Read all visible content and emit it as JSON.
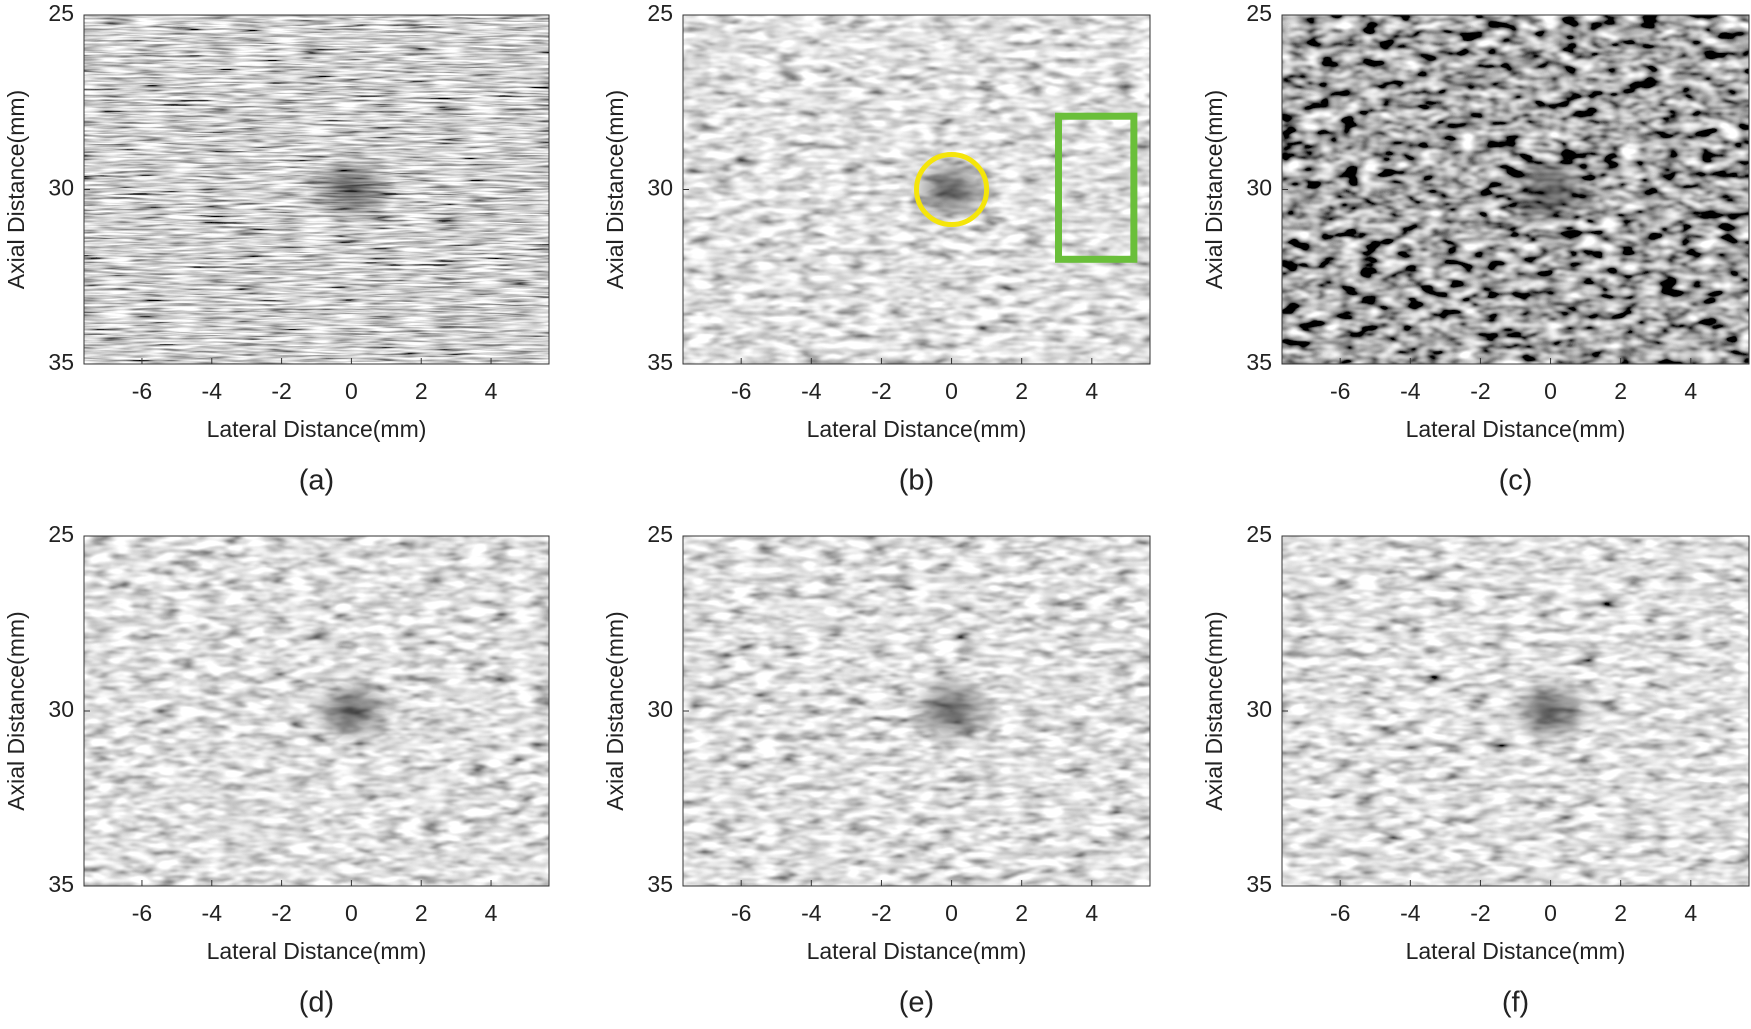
{
  "chart_data": [
    {
      "type": "image",
      "caption": "(a)",
      "xlabel": "Lateral Distance(mm)",
      "ylabel": "Axial Distance(mm)",
      "xlim": [
        -7.66,
        5.66
      ],
      "ylim": [
        35,
        25
      ],
      "xticks": [
        -6,
        -4,
        -2,
        0,
        2,
        4
      ],
      "yticks": [
        25,
        30,
        35
      ],
      "colormap": "gray"
    },
    {
      "type": "image",
      "caption": "(b)",
      "xlabel": "Lateral Distance(mm)",
      "ylabel": "Axial Distance(mm)",
      "xlim": [
        -7.66,
        5.66
      ],
      "ylim": [
        35,
        25
      ],
      "xticks": [
        -6,
        -4,
        -2,
        0,
        2,
        4
      ],
      "yticks": [
        25,
        30,
        35
      ],
      "colormap": "gray",
      "regions": [
        {
          "shape": "circle",
          "x": 0,
          "y": 30,
          "r": 1,
          "color": "#f5e50a"
        },
        {
          "shape": "rect",
          "x": [
            3.05,
            5.2
          ],
          "y": [
            27.9,
            32
          ],
          "color": "#6abf3a"
        }
      ]
    },
    {
      "type": "image",
      "caption": "(c)",
      "xlabel": "Lateral Distance(mm)",
      "ylabel": "Axial  Distance(mm)",
      "xlim": [
        -7.66,
        5.66
      ],
      "ylim": [
        35,
        25
      ],
      "xticks": [
        -6,
        -4,
        -2,
        0,
        2,
        4
      ],
      "yticks": [
        25,
        30,
        35
      ],
      "colormap": "gray"
    },
    {
      "type": "image",
      "caption": "(d)",
      "xlabel": "Lateral Distance(mm)",
      "ylabel": "Axial Distance(mm)",
      "xlim": [
        -7.66,
        5.66
      ],
      "ylim": [
        35,
        25
      ],
      "xticks": [
        -6,
        -4,
        -2,
        0,
        2,
        4
      ],
      "yticks": [
        25,
        30,
        35
      ],
      "colormap": "gray"
    },
    {
      "type": "image",
      "caption": "(e)",
      "xlabel": "Lateral Distance(mm)",
      "ylabel": "Axial Distance(mm)",
      "xlim": [
        -7.66,
        5.66
      ],
      "ylim": [
        35,
        25
      ],
      "xticks": [
        -6,
        -4,
        -2,
        0,
        2,
        4
      ],
      "yticks": [
        25,
        30,
        35
      ],
      "colormap": "gray"
    },
    {
      "type": "image",
      "caption": "(f)",
      "xlabel": "Lateral Distance(mm)",
      "ylabel": "Axial Distance(mm)",
      "xlim": [
        -7.66,
        5.66
      ],
      "ylim": [
        35,
        25
      ],
      "xticks": [
        -6,
        -4,
        -2,
        0,
        2,
        4
      ],
      "yticks": [
        25,
        30,
        35
      ],
      "colormap": "gray"
    }
  ]
}
